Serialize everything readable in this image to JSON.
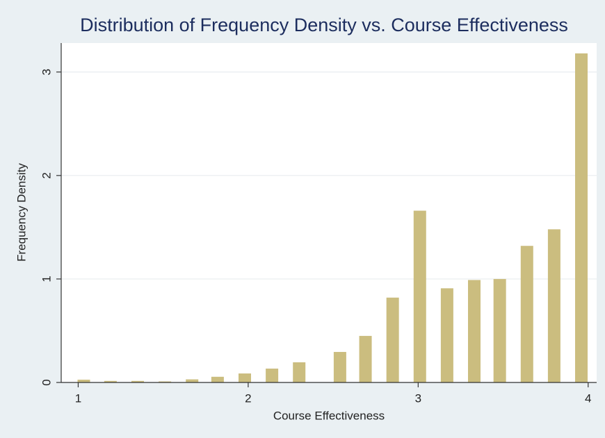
{
  "chart_data": {
    "type": "bar",
    "title": "Distribution of Frequency Density vs. Course Effectiveness",
    "x_label": "Course Effectiveness",
    "y_label": "Frequency Density",
    "x": [
      1.033,
      1.19,
      1.35,
      1.51,
      1.67,
      1.82,
      1.98,
      2.14,
      2.3,
      2.54,
      2.69,
      2.85,
      3.01,
      3.17,
      3.33,
      3.48,
      3.64,
      3.8,
      3.96
    ],
    "values": [
      0.027,
      0.015,
      0.015,
      0.01,
      0.03,
      0.055,
      0.087,
      0.134,
      0.195,
      0.295,
      0.45,
      0.82,
      1.66,
      0.91,
      0.99,
      1.0,
      1.32,
      1.48,
      3.18
    ],
    "color": "#cbbd7f",
    "xlim": [
      0.9,
      4.05
    ],
    "xticks": [
      1,
      2,
      3,
      4
    ],
    "ylim": [
      0,
      3.28
    ],
    "yticks": [
      0,
      1,
      2,
      3
    ],
    "grid": true
  }
}
